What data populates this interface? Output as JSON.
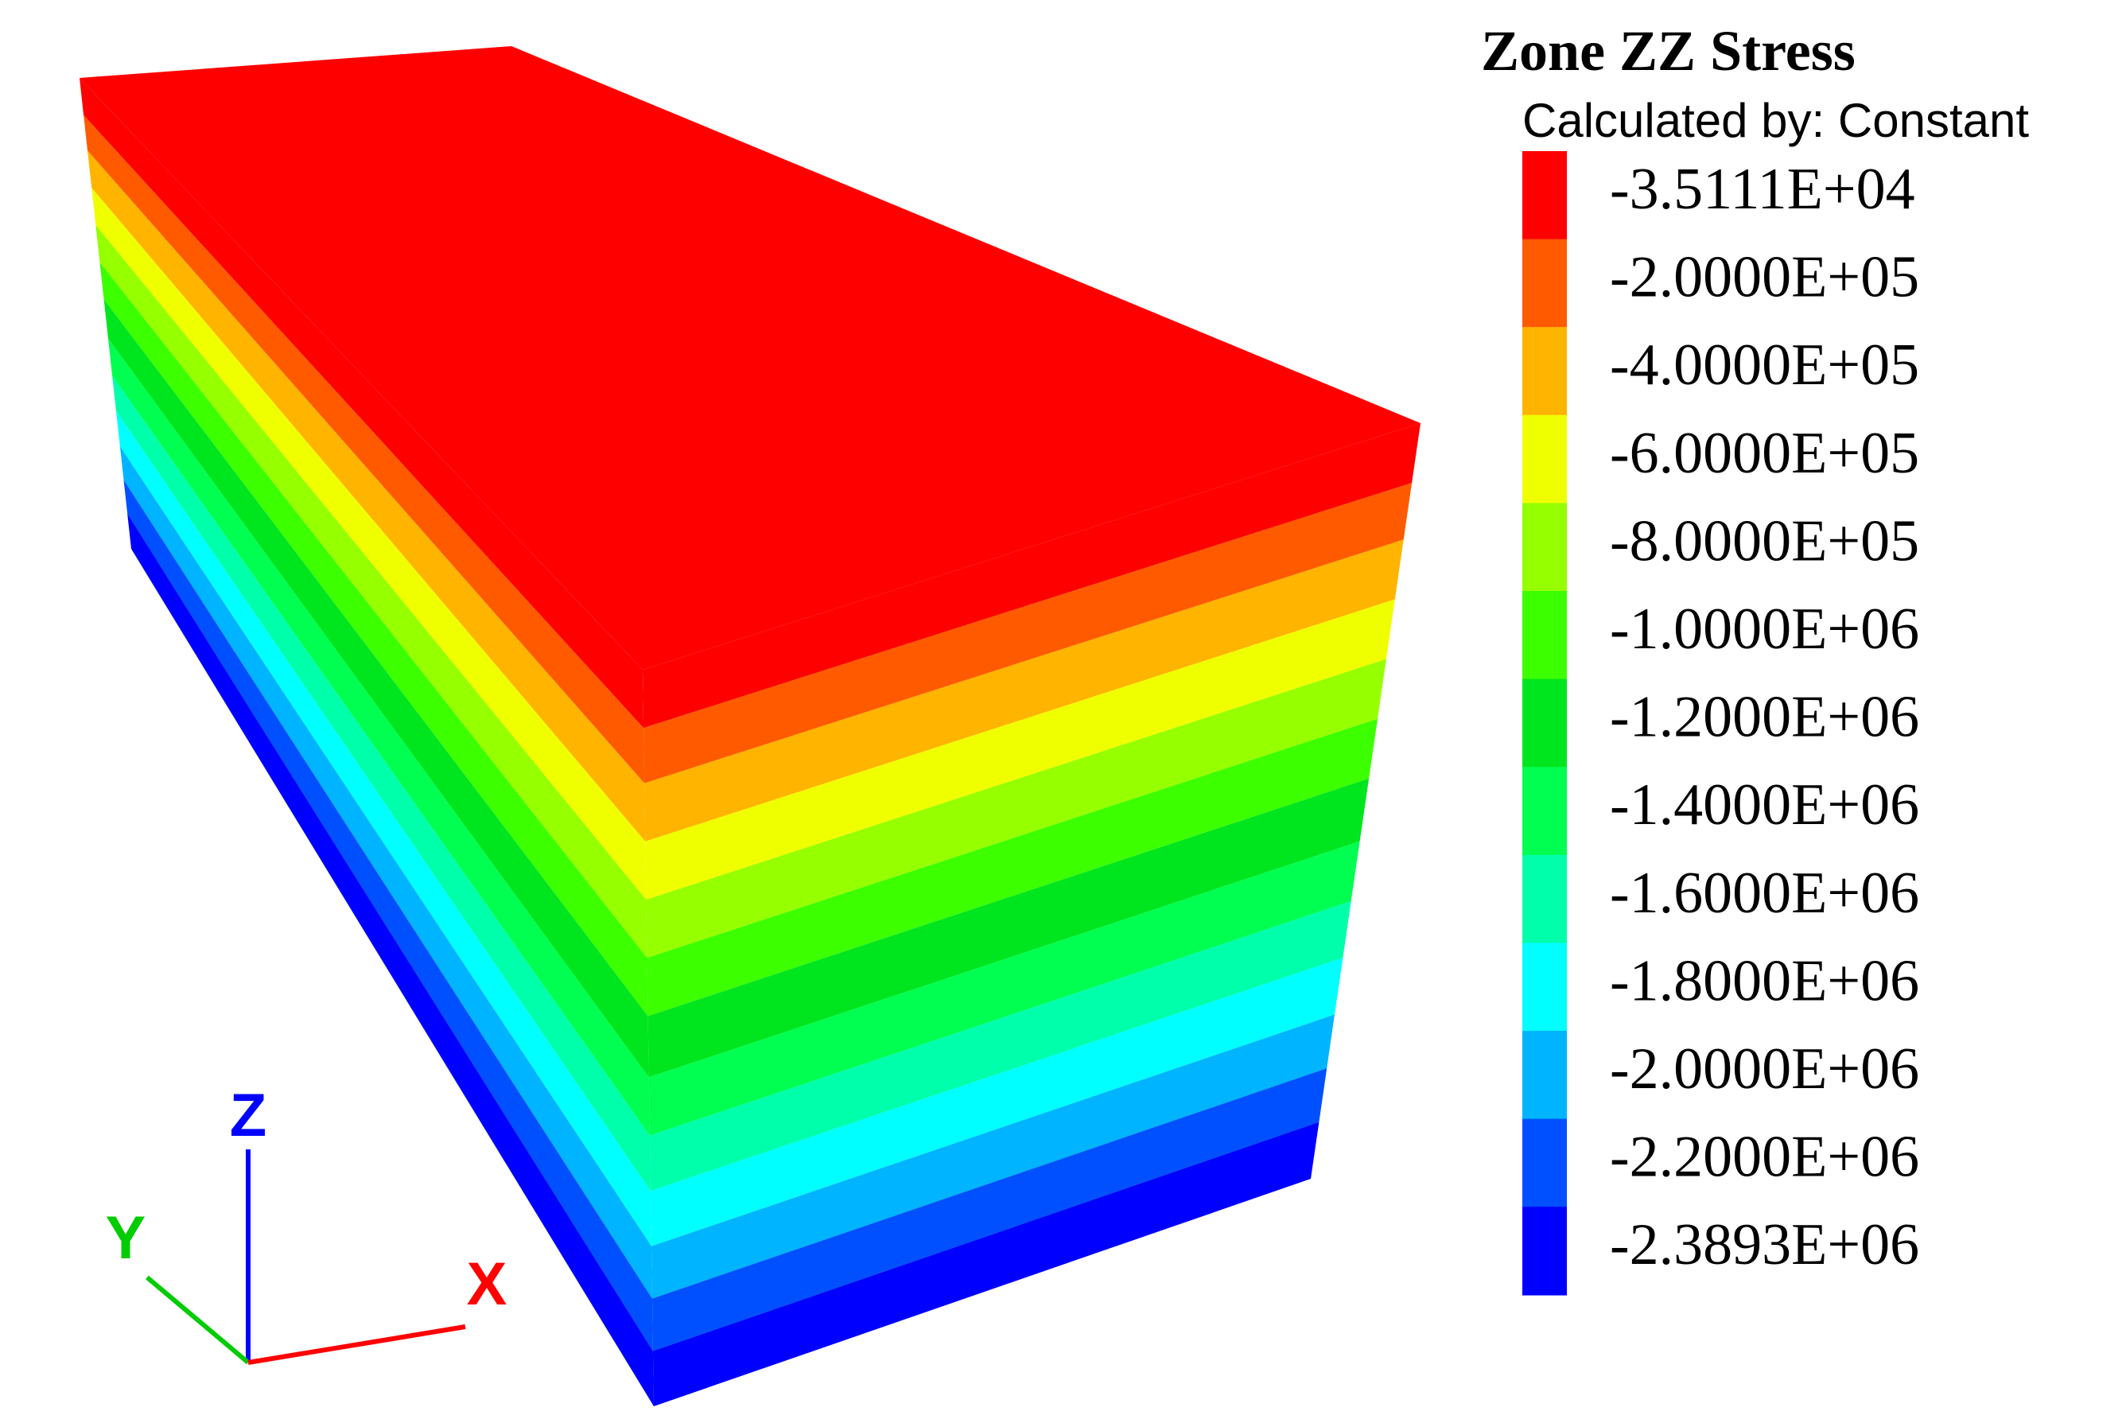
{
  "legend": {
    "title": "Zone ZZ Stress",
    "subtitle": "Calculated by: Constant",
    "levels": [
      {
        "label": "-3.5111E+04",
        "color": "#ff0000"
      },
      {
        "label": "-2.0000E+05",
        "color": "#ff5a00"
      },
      {
        "label": "-4.0000E+05",
        "color": "#ffb400"
      },
      {
        "label": "-6.0000E+05",
        "color": "#f0ff00"
      },
      {
        "label": "-8.0000E+05",
        "color": "#96ff00"
      },
      {
        "label": "-1.0000E+06",
        "color": "#3cff00"
      },
      {
        "label": "-1.2000E+06",
        "color": "#00e61e"
      },
      {
        "label": "-1.4000E+06",
        "color": "#00ff50"
      },
      {
        "label": "-1.6000E+06",
        "color": "#00ffaa"
      },
      {
        "label": "-1.8000E+06",
        "color": "#00ffff"
      },
      {
        "label": "-2.0000E+06",
        "color": "#00b4ff"
      },
      {
        "label": "-2.2000E+06",
        "color": "#0050ff"
      },
      {
        "label": "-2.3893E+06",
        "color": "#0000ff"
      }
    ]
  },
  "axes": {
    "z": {
      "label": "Z",
      "color": "#0000ff"
    },
    "y": {
      "label": "Y",
      "color": "#00cc00"
    },
    "x": {
      "label": "X",
      "color": "#ff0000"
    }
  }
}
